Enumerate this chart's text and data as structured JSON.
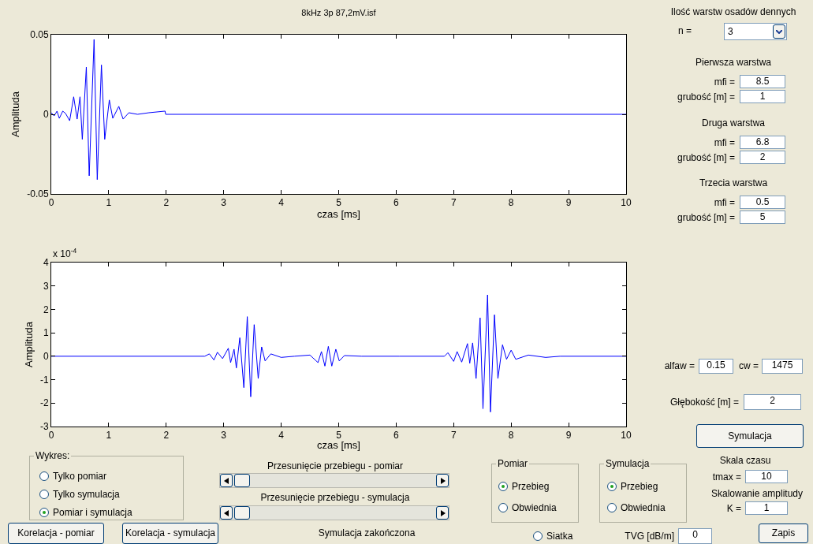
{
  "chart_data": [
    {
      "type": "line",
      "title": "8kHz 3p 87,2mV.isf",
      "xlabel": "czas [ms]",
      "ylabel": "Amplituda",
      "xlim": [
        0,
        10
      ],
      "ylim": [
        -0.05,
        0.05
      ],
      "xticks": [
        0,
        1,
        2,
        3,
        4,
        5,
        6,
        7,
        8,
        9,
        10
      ],
      "yticks": [
        -0.05,
        0,
        0.05
      ],
      "x": [
        0,
        0.05,
        0.1,
        0.14,
        0.2,
        0.25,
        0.32,
        0.39,
        0.45,
        0.5,
        0.54,
        0.61,
        0.66,
        0.745,
        0.8,
        0.873,
        0.93,
        1.01,
        1.07,
        1.175,
        1.25,
        1.35,
        1.5,
        1.7,
        1.98,
        1.99,
        10
      ],
      "series": [
        {
          "color": "#0000ff",
          "values": [
            0.001,
            -0.001,
            0.002,
            -0.0025,
            0.002,
            0.0005,
            -0.004,
            0.011,
            -0.003,
            0.011,
            -0.0157,
            0.0297,
            -0.0386,
            0.047,
            -0.041,
            0.031,
            -0.0157,
            0.009,
            -0.0025,
            0.005,
            -0.003,
            0.001,
            0,
            0.001,
            0.002,
            0,
            0
          ]
        }
      ]
    },
    {
      "type": "line",
      "xlabel": "czas [ms]",
      "ylabel": "Amplituda",
      "annotations": [
        "x 10$^{-4}$"
      ],
      "xlim": [
        0,
        10
      ],
      "ylim": [
        -3,
        4
      ],
      "xticks": [
        0,
        1,
        2,
        3,
        4,
        5,
        6,
        7,
        8,
        9,
        10
      ],
      "yticks": [
        -3,
        -2,
        -1,
        0,
        1,
        2,
        3,
        4
      ],
      "x": [
        0,
        2.67,
        2.75,
        2.83,
        2.89,
        2.98,
        3.08,
        3.12,
        3.18,
        3.22,
        3.28,
        3.35,
        3.41,
        3.47,
        3.53,
        3.6,
        3.66,
        3.72,
        3.82,
        4.0,
        4.23,
        4.5,
        4.64,
        4.7,
        4.76,
        4.82,
        4.88,
        4.95,
        5.01,
        5.1,
        5.4,
        6.06,
        6.84,
        6.9,
        7.0,
        7.06,
        7.14,
        7.24,
        7.28,
        7.33,
        7.39,
        7.46,
        7.51,
        7.59,
        7.64,
        7.71,
        7.77,
        7.85,
        7.92,
        8.0,
        8.08,
        8.3,
        8.6,
        8.85,
        10
      ],
      "series": [
        {
          "color": "#0000ff",
          "values": [
            0,
            0,
            0.1,
            -0.16,
            0.17,
            -0.1,
            0.34,
            -0.27,
            0.3,
            -0.5,
            0.79,
            -1.34,
            1.69,
            -1.73,
            1.35,
            -0.95,
            0.4,
            -0.2,
            0.1,
            -0.05,
            0,
            0.05,
            -0.27,
            0.2,
            -0.42,
            0.42,
            -0.42,
            0.3,
            -0.2,
            0.03,
            0,
            0,
            0,
            0.15,
            -0.22,
            0.2,
            -0.25,
            0.54,
            -0.3,
            0.57,
            -0.95,
            1.64,
            -2.24,
            2.62,
            -2.38,
            1.77,
            -0.95,
            0.49,
            -0.13,
            0.26,
            -0.13,
            0.05,
            -0.05,
            0,
            0
          ]
        }
      ]
    },
    {
      "type": "other",
      "annotations": [
        "Ilość warstw osadów dennych",
        "n =",
        "3",
        "Pierwsza warstwa",
        "mfi =",
        "8.5",
        "grubość [m] =",
        "1",
        "Druga warstwa",
        "mfi =",
        "6.8",
        "grubość [m] =",
        "2",
        "Trzecia warstwa",
        "mfi =",
        "0.5",
        "grubość [m] =",
        "5",
        "alfaw =",
        "0.15",
        "cw =",
        "1475",
        "Głębokość [m] =",
        "2",
        "Symulacja",
        "Skala czasu",
        "tmax =",
        "10",
        "Skalowanie amplitudy",
        "K =",
        "1",
        "Zapis",
        "TVG [dB/m]",
        "0",
        "Siatka",
        "Symulacja zakończona",
        "Korelacja - pomiar",
        "Korelacja - symulacja",
        "Wykres:",
        "Tylko pomiar",
        "Tylko symulacja",
        "Pomiar i symulacja",
        "Przesunięcie przebiegu - pomiar",
        "Przesunięcie przebiegu - symulacja",
        "Pomiar",
        "Przebieg",
        "Obwiednia",
        "Symulacja",
        "Przebieg",
        "Obwiednia"
      ]
    }
  ]
}
